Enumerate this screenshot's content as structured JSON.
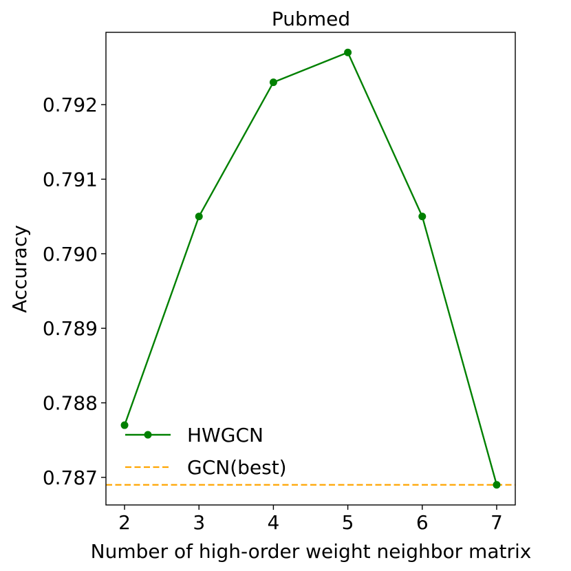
{
  "chart_data": {
    "type": "line",
    "title": "Pubmed",
    "xlabel": "Number of high-order weight neighbor matrix",
    "ylabel": "Accuracy",
    "x": [
      2,
      3,
      4,
      5,
      6,
      7
    ],
    "xlim": [
      1.75,
      7.25
    ],
    "ylim": [
      0.78663,
      0.79297
    ],
    "xticks": [
      2,
      3,
      4,
      5,
      6,
      7
    ],
    "yticks": [
      0.787,
      0.788,
      0.789,
      0.79,
      0.791,
      0.792
    ],
    "xtick_labels": [
      "2",
      "3",
      "4",
      "5",
      "6",
      "7"
    ],
    "ytick_labels": [
      "0.787",
      "0.788",
      "0.789",
      "0.790",
      "0.791",
      "0.792"
    ],
    "grid": false,
    "legend_position": "lower-left",
    "series": [
      {
        "name": "HWGCN",
        "style": "line-marker",
        "color": "#008000",
        "values": [
          0.7877,
          0.7905,
          0.7923,
          0.7927,
          0.7905,
          0.7869
        ]
      },
      {
        "name": "GCN(best)",
        "style": "dashed-horizontal",
        "color": "#ffa500",
        "value": 0.7869
      }
    ]
  }
}
